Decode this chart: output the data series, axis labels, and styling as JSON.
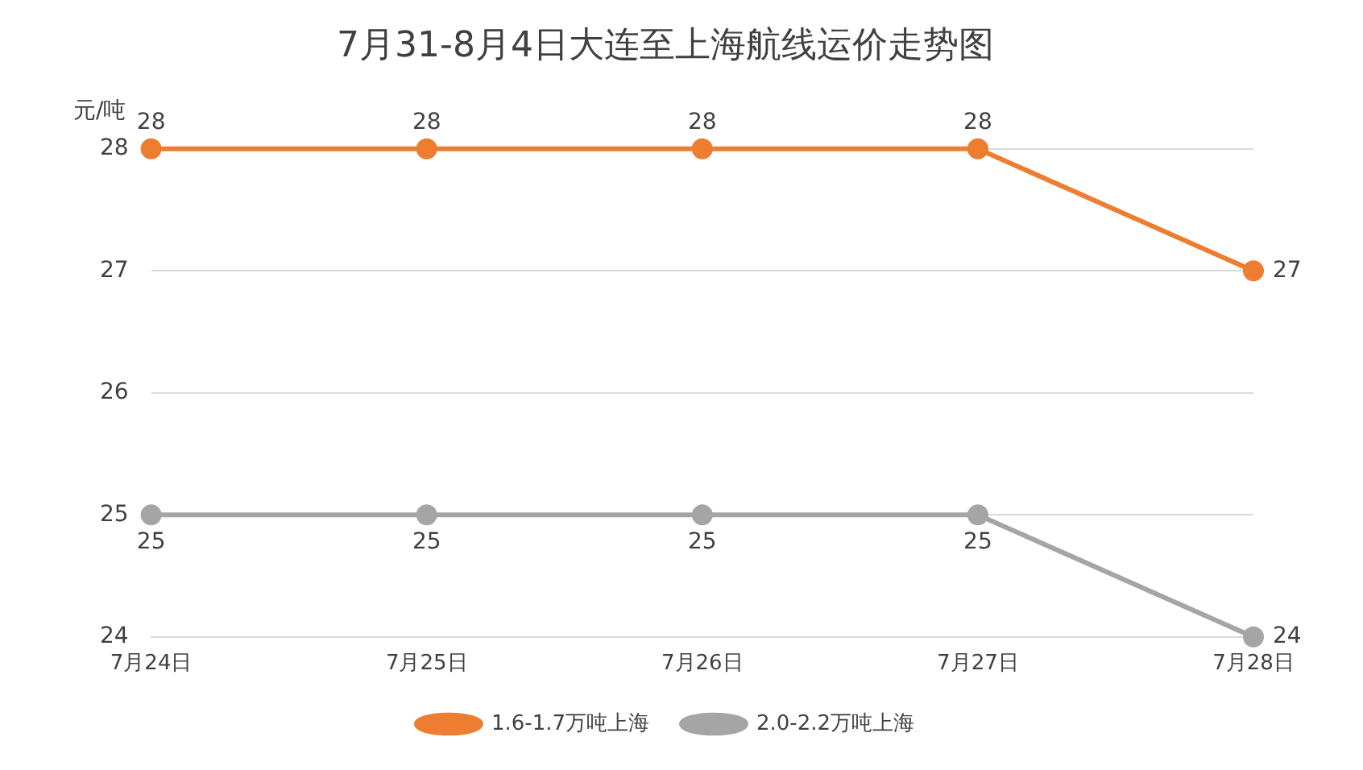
{
  "chart_data": {
    "type": "line",
    "title": "7月31-8月4日大连至上海航线运价走势图",
    "ylabel": "元/吨",
    "categories": [
      "7月24日",
      "7月25日",
      "7月26日",
      "7月27日",
      "7月28日"
    ],
    "series": [
      {
        "name": "1.6-1.7万吨上海",
        "color": "#ed7d31",
        "values": [
          28,
          28,
          28,
          28,
          27
        ]
      },
      {
        "name": "2.0-2.2万吨上海",
        "color": "#a5a5a5",
        "values": [
          25,
          25,
          25,
          25,
          24
        ]
      }
    ],
    "ylim": [
      24,
      28
    ],
    "yticks": [
      24,
      25,
      26,
      27,
      28
    ],
    "grid": "y",
    "legend": "bottom",
    "marker": "circle",
    "line_style": "solid",
    "data_labels": true
  }
}
